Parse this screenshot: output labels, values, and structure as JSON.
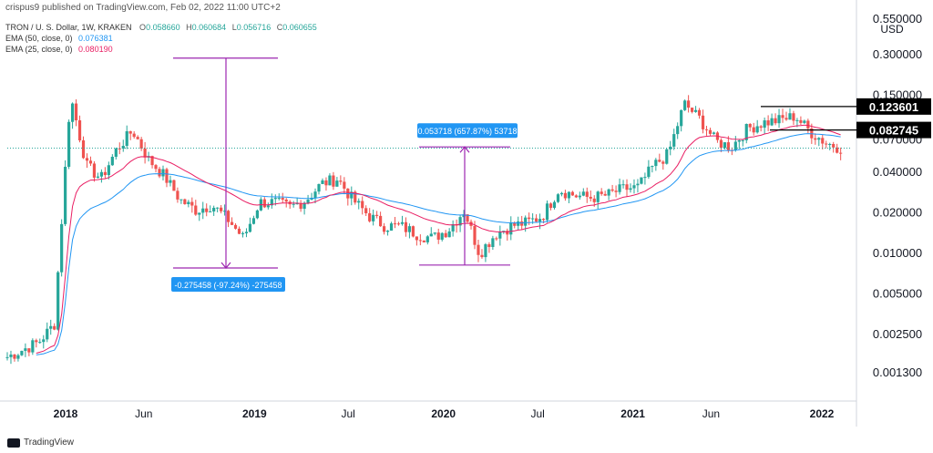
{
  "header": {
    "author_line": "crispus9 published on TradingView.com, Feb 02, 2022 11:00 UTC+2"
  },
  "legend": {
    "symbol": "TRON / U. S. Dollar, 1W, KRAKEN",
    "ohlc": {
      "o_label": "O",
      "o": "0.058660",
      "h_label": "H",
      "h": "0.060684",
      "l_label": "L",
      "l": "0.056716",
      "c_label": "C",
      "c": "0.060655"
    },
    "ema50": {
      "label": "EMA (50, close, 0)",
      "value": "0.076381",
      "color": "#2196f3"
    },
    "ema25": {
      "label": "EMA (25, close, 0)",
      "value": "0.080190",
      "color": "#e91e63"
    }
  },
  "footer": {
    "brand": "TradingView"
  },
  "colors": {
    "up": "#26a69a",
    "down": "#ef5350",
    "measure": "#9c27b0",
    "label_bg": "#2196f3",
    "price_tag": "#000000"
  },
  "chart_data": {
    "type": "candlestick",
    "title": "TRON / U. S. Dollar, 1W, KRAKEN",
    "currency": "USD",
    "y_scale": "log",
    "y_ticks": [
      "0.001300",
      "0.002500",
      "0.005000",
      "0.010000",
      "0.020000",
      "0.040000",
      "0.070000",
      "0.150000",
      "0.300000",
      "0.550000"
    ],
    "x_ticks": [
      "2018",
      "Jun",
      "2019",
      "Jul",
      "2020",
      "Jul",
      "2021",
      "Jun",
      "2022"
    ],
    "x_ticks_bold": [
      true,
      false,
      true,
      false,
      true,
      false,
      true,
      false,
      true
    ],
    "price_labels": [
      {
        "text": "0.123601",
        "value": 0.123601
      },
      {
        "text": "0.082745",
        "value": 0.082745
      }
    ],
    "last_close": 0.060655,
    "measurements": [
      {
        "text": "-0.275458 (-97.24%) -275458",
        "from": 0.283,
        "to": 0.0078
      },
      {
        "text": "0.053718 (657.87%) 53718",
        "from": 0.0082,
        "to": 0.0619
      }
    ],
    "candles_note": "weekly candles approximate the pictured price path",
    "path": [
      [
        "2017-09",
        0.0017
      ],
      [
        "2017-11",
        0.0022
      ],
      [
        "2017-12",
        0.003
      ],
      [
        "2018-01",
        0.15
      ],
      [
        "2018-02",
        0.045
      ],
      [
        "2018-03",
        0.036
      ],
      [
        "2018-04",
        0.06
      ],
      [
        "2018-05",
        0.082
      ],
      [
        "2018-06",
        0.05
      ],
      [
        "2018-07",
        0.038
      ],
      [
        "2018-08",
        0.025
      ],
      [
        "2018-09",
        0.021
      ],
      [
        "2018-10",
        0.023
      ],
      [
        "2018-11",
        0.018
      ],
      [
        "2018-12",
        0.013
      ],
      [
        "2019-01",
        0.024
      ],
      [
        "2019-02",
        0.024
      ],
      [
        "2019-03",
        0.022
      ],
      [
        "2019-04",
        0.025
      ],
      [
        "2019-05",
        0.033
      ],
      [
        "2019-06",
        0.036
      ],
      [
        "2019-07",
        0.025
      ],
      [
        "2019-08",
        0.019
      ],
      [
        "2019-09",
        0.016
      ],
      [
        "2019-10",
        0.016
      ],
      [
        "2019-11",
        0.014
      ],
      [
        "2019-12",
        0.013
      ],
      [
        "2020-01",
        0.015
      ],
      [
        "2020-02",
        0.021
      ],
      [
        "2020-03",
        0.01
      ],
      [
        "2020-04",
        0.014
      ],
      [
        "2020-05",
        0.016
      ],
      [
        "2020-06",
        0.017
      ],
      [
        "2020-07",
        0.019
      ],
      [
        "2020-08",
        0.03
      ],
      [
        "2020-09",
        0.027
      ],
      [
        "2020-10",
        0.026
      ],
      [
        "2020-11",
        0.027
      ],
      [
        "2020-12",
        0.03
      ],
      [
        "2021-01",
        0.031
      ],
      [
        "2021-02",
        0.045
      ],
      [
        "2021-03",
        0.055
      ],
      [
        "2021-04",
        0.13
      ],
      [
        "2021-05",
        0.1
      ],
      [
        "2021-06",
        0.068
      ],
      [
        "2021-07",
        0.062
      ],
      [
        "2021-08",
        0.085
      ],
      [
        "2021-09",
        0.094
      ],
      [
        "2021-10",
        0.098
      ],
      [
        "2021-11",
        0.105
      ],
      [
        "2021-12",
        0.08
      ],
      [
        "2022-01",
        0.066
      ],
      [
        "2022-02",
        0.060655
      ]
    ]
  }
}
